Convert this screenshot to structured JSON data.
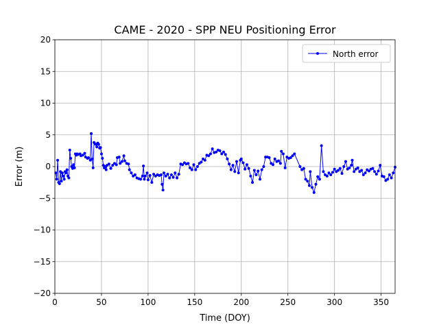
{
  "chart_data": {
    "type": "line",
    "title": "CAME - 2020 - SPP NEU Positioning Error",
    "xlabel": "Time (DOY)",
    "ylabel": "Error (m)",
    "xlim": [
      0,
      365
    ],
    "xticks": [
      0,
      50,
      100,
      150,
      200,
      250,
      300,
      350
    ],
    "ylim": [
      -20,
      20
    ],
    "yticks": [
      {
        "value": -20,
        "label": "−20"
      },
      {
        "value": -15,
        "label": "−15"
      },
      {
        "value": -10,
        "label": "−10"
      },
      {
        "value": -5,
        "label": "−5"
      },
      0,
      5,
      10,
      15,
      20
    ],
    "grid": true,
    "legend": "upper right",
    "x": [
      1,
      2,
      3,
      4,
      5,
      6,
      7,
      8,
      9,
      10,
      11,
      12,
      13,
      14,
      15,
      16,
      17,
      18,
      19,
      20,
      21,
      22,
      23,
      24,
      25,
      27,
      28,
      30,
      32,
      33,
      35,
      36,
      38,
      39,
      40,
      41,
      42,
      43,
      44,
      45,
      46,
      47,
      48,
      49,
      50,
      51,
      52,
      53,
      54,
      55,
      56,
      58,
      60,
      62,
      64,
      66,
      67,
      69,
      70,
      72,
      74,
      75,
      77,
      79,
      80,
      82,
      84,
      86,
      88,
      90,
      92,
      94,
      95,
      96,
      97,
      99,
      100,
      102,
      104,
      106,
      108,
      110,
      112,
      114,
      115,
      116,
      117,
      119,
      121,
      123,
      125,
      127,
      129,
      131,
      133,
      135,
      137,
      139,
      141,
      143,
      145,
      147,
      149,
      151,
      153,
      155,
      157,
      159,
      161,
      163,
      165,
      167,
      169,
      171,
      173,
      175,
      177,
      179,
      181,
      183,
      185,
      187,
      189,
      191,
      193,
      195,
      197,
      199,
      200,
      202,
      204,
      206,
      208,
      210,
      212,
      214,
      216,
      218,
      220,
      222,
      224,
      226,
      228,
      230,
      232,
      234,
      236,
      238,
      240,
      242,
      243,
      245,
      247,
      249,
      251,
      253,
      255,
      257,
      263,
      265,
      267,
      269,
      271,
      273,
      274,
      276,
      278,
      280,
      282,
      284,
      286,
      288,
      290,
      292,
      294,
      296,
      298,
      300,
      302,
      304,
      306,
      308,
      310,
      312,
      314,
      316,
      318,
      319,
      321,
      323,
      325,
      327,
      329,
      331,
      333,
      335,
      337,
      339,
      341,
      343,
      345,
      347,
      349,
      351,
      353,
      355,
      357,
      359,
      361,
      363,
      365
    ],
    "series": [
      {
        "name": "North error",
        "color": "#0000ff",
        "values": [
          -1,
          -2,
          1,
          -2.5,
          -2.7,
          -0.8,
          -2.3,
          -1,
          -1.5,
          -2,
          -0.8,
          -1,
          -0.5,
          -1.5,
          -1.8,
          2.6,
          1.3,
          0,
          -0.3,
          0.3,
          -0.2,
          2,
          1.8,
          2,
          1.9,
          2,
          1.7,
          1.8,
          2.1,
          1.5,
          1.3,
          1.4,
          1,
          5.2,
          1.2,
          -0.2,
          3.8,
          3.6,
          3.5,
          3.1,
          3.7,
          3.5,
          2.9,
          3,
          2,
          1.3,
          0.2,
          -0.2,
          0,
          -0.5,
          0.2,
          0.4,
          -0.3,
          0.2,
          0.5,
          0.3,
          1.4,
          1.5,
          0.5,
          0.8,
          1.7,
          0.9,
          0.5,
          0.4,
          -0.5,
          -1,
          -1.5,
          -1.3,
          -1.8,
          -1.9,
          -2,
          -1.5,
          0.1,
          -2,
          -1.5,
          -1,
          -2.1,
          -1.4,
          -2.5,
          -1.2,
          -1.5,
          -1.3,
          -1.4,
          -1.3,
          -2.8,
          -3.7,
          -1,
          -1.5,
          -1.2,
          -1.8,
          -1.3,
          -1.7,
          -1,
          -1.8,
          -1.2,
          0.4,
          0.3,
          0.6,
          0.4,
          0.5,
          -0.2,
          -0.5,
          0.3,
          -0.5,
          0,
          0.5,
          0.7,
          1.2,
          1,
          1.8,
          1.7,
          2,
          2.8,
          2.2,
          2.3,
          2.6,
          2.5,
          2,
          2.3,
          1.9,
          1.2,
          0.4,
          -0.5,
          0.2,
          -0.8,
          0.8,
          -1,
          1,
          1.2,
          0.6,
          -0.4,
          0.3,
          -0.3,
          -1.5,
          -2.5,
          -0.6,
          -1.3,
          -0.7,
          -2,
          -0.5,
          0,
          1.5,
          1.5,
          1.4,
          0.5,
          0.3,
          1.2,
          0.8,
          0.9,
          0.5,
          2.4,
          2,
          -0.2,
          1.5,
          1.3,
          1.4,
          1.7,
          2,
          0,
          -0.5,
          -0.3,
          -2,
          -2.3,
          -3,
          -0.8,
          -3.3,
          -4.1,
          -2.8,
          -1.6,
          -2,
          3.3,
          -0.8,
          -1.3,
          -1.5,
          -1,
          -1.3,
          -0.9,
          -0.4,
          -0.8,
          -0.6,
          -0.3,
          -1.1,
          0,
          0.8,
          -0.4,
          -0.2,
          0.2,
          1,
          -0.8,
          -0.4,
          -0.2,
          -0.8,
          -0.6,
          -1.3,
          -1,
          -0.5,
          -0.7,
          -0.4,
          -0.3,
          -0.8,
          -1.2,
          -0.7,
          0.2,
          -1.5,
          -1.6,
          -2.2,
          -2,
          -1.3,
          -1.8,
          -1,
          -0.1
        ]
      }
    ]
  }
}
